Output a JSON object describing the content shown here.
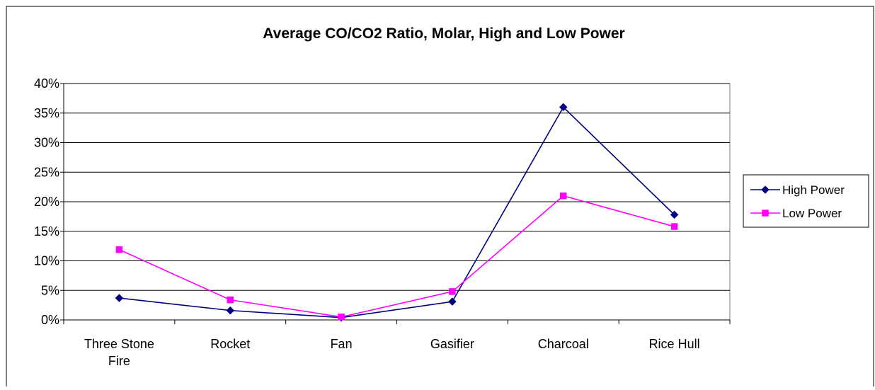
{
  "chart_data": {
    "type": "line",
    "title": "Average CO/CO2 Ratio, Molar, High and Low Power",
    "xlabel": "",
    "ylabel": "",
    "categories": [
      [
        "Three Stone",
        "Fire"
      ],
      [
        "Rocket"
      ],
      [
        "Fan"
      ],
      [
        "Gasifier"
      ],
      [
        "Charcoal"
      ],
      [
        "Rice Hull"
      ]
    ],
    "y_ticks": [
      "0%",
      "5%",
      "10%",
      "15%",
      "20%",
      "25%",
      "30%",
      "35%",
      "40%"
    ],
    "ylim": [
      0,
      40
    ],
    "y_unit": "%",
    "grid": true,
    "legend_position": "right",
    "series": [
      {
        "name": "High Power",
        "color": "#000080",
        "marker": "diamond",
        "values": [
          3.7,
          1.6,
          0.4,
          3.1,
          36.0,
          17.8
        ]
      },
      {
        "name": "Low Power",
        "color": "#ff00ff",
        "marker": "square",
        "values": [
          11.9,
          3.4,
          0.5,
          4.8,
          21.0,
          15.8
        ]
      }
    ]
  }
}
